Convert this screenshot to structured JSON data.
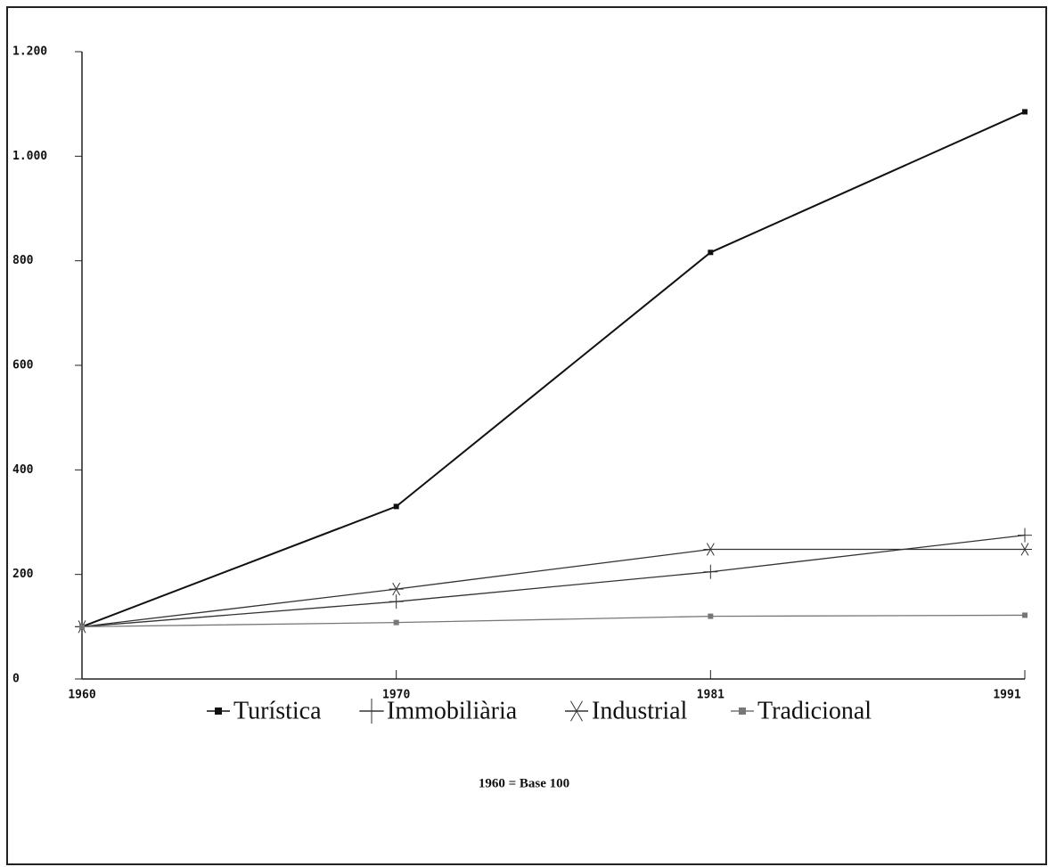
{
  "chart_data": {
    "type": "line",
    "categories": [
      "1960",
      "1970",
      "1981",
      "1991"
    ],
    "series": [
      {
        "name": "Turística",
        "color": "#111111",
        "marker": "square",
        "values": [
          100,
          330,
          816,
          1085
        ]
      },
      {
        "name": "Immobiliària",
        "color": "#333333",
        "marker": "plus",
        "values": [
          100,
          148,
          205,
          275
        ]
      },
      {
        "name": "Industrial",
        "color": "#333333",
        "marker": "star",
        "values": [
          100,
          172,
          248,
          248
        ]
      },
      {
        "name": "Tradicional",
        "color": "#777777",
        "marker": "square",
        "values": [
          100,
          108,
          120,
          122
        ]
      }
    ],
    "ylim": [
      0,
      1200
    ],
    "yticks": [
      0,
      200,
      400,
      600,
      800,
      {
        "value": 1000,
        "label": "1.000"
      },
      {
        "value": 1200,
        "label": "1.200"
      }
    ],
    "grid": false,
    "legend": "bottom",
    "note": "1960 = Base 100"
  }
}
